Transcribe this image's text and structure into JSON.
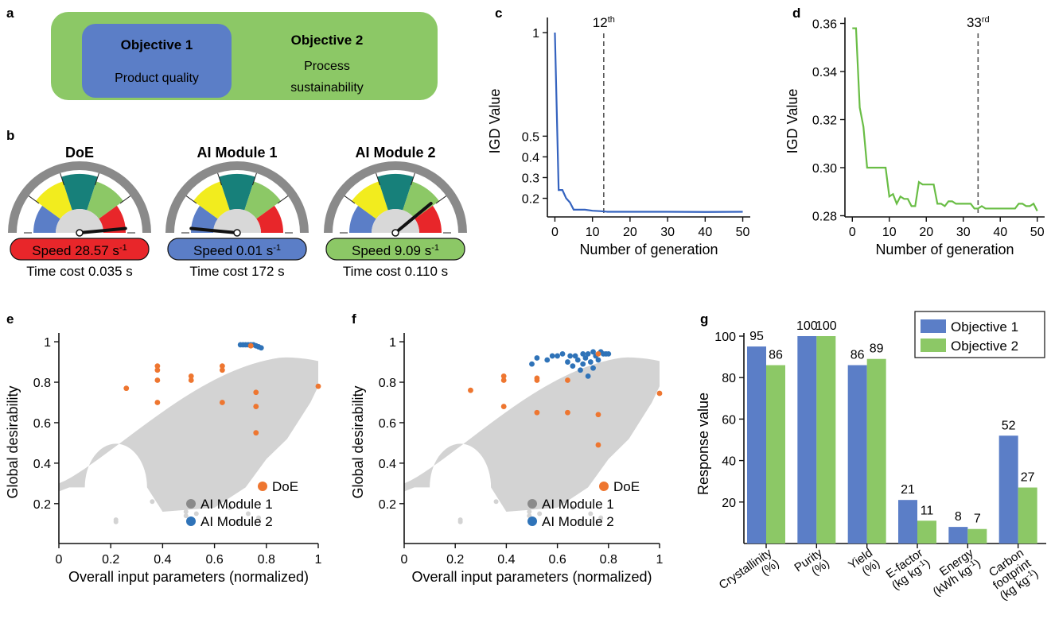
{
  "colors": {
    "blue": "#5b7ec7",
    "green": "#8cc866",
    "teal": "#17807a",
    "yellow": "#f2ec1e",
    "red": "#e8262a",
    "gray": "#d3d3d3",
    "orange": "#ee7630",
    "pareto_blue": "#2f73b8",
    "line_blue": "#3563bf",
    "line_green": "#69bd45"
  },
  "panel_a": {
    "letter": "a",
    "objective1": {
      "title": "Objective 1",
      "subtitle": "Product quality"
    },
    "objective2": {
      "title": "Objective 2",
      "subtitle_line1": "Process",
      "subtitle_line2": "sustainability"
    }
  },
  "panel_b": {
    "letter": "b",
    "gauges": [
      {
        "title": "DoE",
        "speed_label": "Speed 28.57 s",
        "time_cost": "Time cost 0.035 s",
        "needle_fraction": 0.97,
        "badge_color": "#e8262a"
      },
      {
        "title": "AI Module 1",
        "speed_label": "Speed 0.01 s",
        "time_cost": "Time cost 172 s",
        "needle_fraction": 0.03,
        "badge_color": "#5b7ec7"
      },
      {
        "title": "AI Module 2",
        "speed_label": "Speed 9.09 s",
        "time_cost": "Time cost 0.110 s",
        "needle_fraction": 0.78,
        "badge_color": "#8cc866"
      }
    ],
    "speed_sup": "-1"
  },
  "chart_data": [
    {
      "id": "c",
      "type": "line",
      "letter": "c",
      "xlabel": "Number of generation",
      "ylabel": "IGD Value",
      "xlim": [
        -2,
        52
      ],
      "ylim": [
        0.11,
        1.05
      ],
      "xticks": [
        0,
        10,
        20,
        30,
        40,
        50
      ],
      "yticks": [
        0.2,
        0.3,
        0.4,
        0.5,
        1
      ],
      "ytick_labels": [
        "0.2",
        "0.3",
        "0.4",
        "0.5",
        "1"
      ],
      "x": [
        0,
        1,
        2,
        3,
        4,
        5,
        6,
        8,
        10,
        12,
        14,
        20,
        30,
        40,
        50
      ],
      "y": [
        1.0,
        0.24,
        0.24,
        0.2,
        0.18,
        0.145,
        0.145,
        0.145,
        0.14,
        0.138,
        0.135,
        0.135,
        0.135,
        0.134,
        0.135
      ],
      "marker_x": 13,
      "marker_label": "12",
      "marker_sup": "th"
    },
    {
      "id": "d",
      "type": "line",
      "letter": "d",
      "xlabel": "Number of generation",
      "ylabel": "IGD Value",
      "xlim": [
        -2,
        52
      ],
      "ylim": [
        0.2795,
        0.3605
      ],
      "xticks": [
        0,
        10,
        20,
        30,
        40,
        50
      ],
      "yticks": [
        0.28,
        0.3,
        0.32,
        0.34,
        0.36
      ],
      "ytick_labels": [
        "0.28",
        "0.30",
        "0.32",
        "0.34",
        "0.36"
      ],
      "x": [
        0,
        1,
        2,
        3,
        4,
        5,
        6,
        7,
        8,
        9,
        10,
        11,
        12,
        13,
        14,
        15,
        16,
        17,
        18,
        19,
        20,
        21,
        22,
        23,
        24,
        25,
        26,
        27,
        28,
        29,
        30,
        31,
        32,
        33,
        34,
        35,
        36,
        37,
        38,
        39,
        40,
        41,
        42,
        43,
        44,
        45,
        46,
        47,
        48,
        49,
        50
      ],
      "y": [
        0.358,
        0.358,
        0.325,
        0.317,
        0.3,
        0.3,
        0.3,
        0.3,
        0.3,
        0.3,
        0.288,
        0.289,
        0.285,
        0.288,
        0.287,
        0.287,
        0.284,
        0.284,
        0.294,
        0.293,
        0.293,
        0.293,
        0.293,
        0.285,
        0.285,
        0.284,
        0.286,
        0.286,
        0.285,
        0.285,
        0.285,
        0.285,
        0.285,
        0.283,
        0.283,
        0.284,
        0.283,
        0.283,
        0.283,
        0.283,
        0.283,
        0.283,
        0.283,
        0.283,
        0.283,
        0.285,
        0.285,
        0.284,
        0.284,
        0.285,
        0.282
      ],
      "marker_x": 34,
      "marker_label": "33",
      "marker_sup": "rd"
    },
    {
      "id": "e",
      "type": "scatter",
      "letter": "e",
      "xlabel": "Overall input parameters (normalized)",
      "ylabel": "Global desirability",
      "xlim": [
        0,
        1.0
      ],
      "ylim": [
        0.05,
        1.02
      ],
      "xticks": [
        0,
        0.2,
        0.4,
        0.6,
        0.8,
        1
      ],
      "yticks": [
        0.2,
        0.4,
        0.6,
        0.8,
        1
      ],
      "xtick_labels": [
        "0",
        "0.2",
        "0.4",
        "0.6",
        "0.8",
        "1"
      ],
      "ytick_labels": [
        "0.2",
        "0.4",
        "0.6",
        "0.8",
        "1"
      ],
      "series": [
        {
          "name": "DoE",
          "color": "#ee7630",
          "points": [
            [
              0.26,
              0.77
            ],
            [
              0.38,
              0.86
            ],
            [
              0.38,
              0.88
            ],
            [
              0.38,
              0.7
            ],
            [
              0.38,
              0.81
            ],
            [
              0.51,
              0.81
            ],
            [
              0.51,
              0.83
            ],
            [
              0.63,
              0.86
            ],
            [
              0.63,
              0.88
            ],
            [
              0.63,
              0.7
            ],
            [
              0.76,
              0.75
            ],
            [
              0.76,
              0.68
            ],
            [
              0.76,
              0.55
            ],
            [
              1.0,
              0.78
            ],
            [
              0.74,
              0.98
            ]
          ]
        },
        {
          "name": "AI Module 1",
          "color": "#8a8a8a",
          "points": []
        },
        {
          "name": "AI Module 2",
          "color": "#2f73b8",
          "points": [
            [
              0.7,
              0.985
            ],
            [
              0.71,
              0.985
            ],
            [
              0.72,
              0.985
            ],
            [
              0.73,
              0.985
            ],
            [
              0.74,
              0.985
            ],
            [
              0.75,
              0.985
            ],
            [
              0.76,
              0.98
            ],
            [
              0.77,
              0.975
            ],
            [
              0.78,
              0.97
            ]
          ]
        }
      ]
    },
    {
      "id": "f",
      "type": "scatter",
      "letter": "f",
      "xlabel": "Overall input parameters (normalized)",
      "ylabel": "Global desirability",
      "xlim": [
        0,
        1.0
      ],
      "ylim": [
        0.05,
        1.02
      ],
      "xticks": [
        0,
        0.2,
        0.4,
        0.6,
        0.8,
        1
      ],
      "yticks": [
        0.2,
        0.4,
        0.6,
        0.8,
        1
      ],
      "xtick_labels": [
        "0",
        "0.2",
        "0.4",
        "0.6",
        "0.8",
        "1"
      ],
      "ytick_labels": [
        "0.2",
        "0.4",
        "0.6",
        "0.8",
        "1"
      ],
      "series": [
        {
          "name": "DoE",
          "color": "#ee7630",
          "points": [
            [
              0.26,
              0.76
            ],
            [
              0.39,
              0.81
            ],
            [
              0.39,
              0.83
            ],
            [
              0.39,
              0.68
            ],
            [
              0.52,
              0.81
            ],
            [
              0.52,
              0.82
            ],
            [
              0.52,
              0.65
            ],
            [
              0.64,
              0.81
            ],
            [
              0.64,
              0.65
            ],
            [
              0.76,
              0.64
            ],
            [
              0.76,
              0.49
            ],
            [
              1.0,
              0.745
            ],
            [
              0.76,
              0.94
            ]
          ]
        },
        {
          "name": "AI Module 1",
          "color": "#8a8a8a",
          "points": []
        },
        {
          "name": "AI Module 2",
          "color": "#2f73b8",
          "points": [
            [
              0.5,
              0.89
            ],
            [
              0.52,
              0.92
            ],
            [
              0.56,
              0.91
            ],
            [
              0.58,
              0.93
            ],
            [
              0.6,
              0.93
            ],
            [
              0.62,
              0.94
            ],
            [
              0.64,
              0.9
            ],
            [
              0.65,
              0.93
            ],
            [
              0.66,
              0.88
            ],
            [
              0.67,
              0.93
            ],
            [
              0.68,
              0.91
            ],
            [
              0.69,
              0.86
            ],
            [
              0.7,
              0.94
            ],
            [
              0.7,
              0.89
            ],
            [
              0.71,
              0.92
            ],
            [
              0.72,
              0.83
            ],
            [
              0.72,
              0.94
            ],
            [
              0.73,
              0.9
            ],
            [
              0.74,
              0.95
            ],
            [
              0.74,
              0.87
            ],
            [
              0.75,
              0.93
            ],
            [
              0.76,
              0.91
            ],
            [
              0.77,
              0.95
            ],
            [
              0.78,
              0.94
            ],
            [
              0.79,
              0.94
            ],
            [
              0.8,
              0.94
            ]
          ]
        }
      ]
    },
    {
      "id": "g",
      "type": "bar",
      "letter": "g",
      "ylabel": "Response value",
      "ylim": [
        0,
        100
      ],
      "yticks": [
        20,
        40,
        60,
        80,
        100
      ],
      "categories": [
        "Crystallinity (%)",
        "Purity (%)",
        "Yield (%)",
        "E-factor (kg kg-1)",
        "Energy (kWh kg-1)",
        "Carbon footprint (kg kg-1)"
      ],
      "category_lines": [
        [
          "Crystallinity",
          "(%)"
        ],
        [
          "Purity",
          "(%)"
        ],
        [
          "Yield",
          "(%)"
        ],
        [
          "E-factor",
          "(kg kg",
          "-1",
          ")"
        ],
        [
          "Energy",
          "(kWh kg",
          "-1",
          ")"
        ],
        [
          "Carbon",
          "footprint",
          "(kg kg",
          "-1",
          ")"
        ]
      ],
      "series": [
        {
          "name": "Objective 1",
          "color": "#5b7ec7",
          "values": [
            95,
            100,
            86,
            21,
            8,
            52
          ]
        },
        {
          "name": "Objective 2",
          "color": "#8cc866",
          "values": [
            86,
            100,
            89,
            11,
            7,
            27
          ]
        }
      ]
    }
  ]
}
